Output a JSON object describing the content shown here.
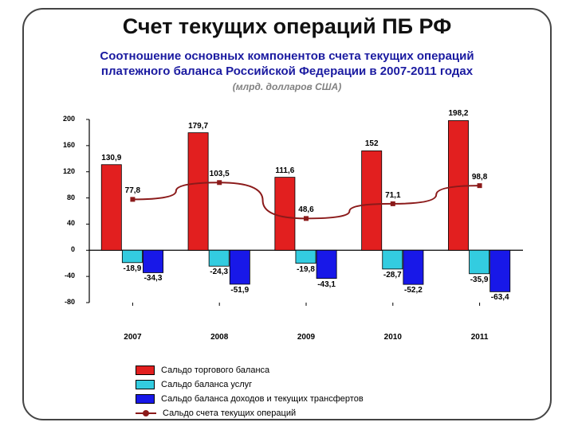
{
  "page_title": "Счет текущих операций ПБ РФ",
  "chart": {
    "type": "bar+line",
    "title_line1": "Соотношение основных компонентов счета текущих операций",
    "title_line2": "платежного баланса Российской Федерации в 2007-2011 годах",
    "subtitle": "(млрд. долларов США)",
    "title_color": "#1a1aa0",
    "subtitle_color": "#808080",
    "title_fontsize": 15,
    "subtitle_fontsize": 12,
    "background_color": "#ffffff",
    "axis_color": "#000000",
    "ylim": [
      -80,
      200
    ],
    "ytick_step": 40,
    "yticks": [
      -80,
      -40,
      0,
      40,
      80,
      120,
      160,
      200
    ],
    "categories": [
      "2007",
      "2008",
      "2009",
      "2010",
      "2011"
    ],
    "series": [
      {
        "name": "Сальдо торгового баланса",
        "color": "#e21f1f",
        "border": "#000000",
        "values": [
          130.9,
          179.7,
          111.6,
          152.0,
          198.2
        ]
      },
      {
        "name": "Сальдо баланса услуг",
        "color": "#33cce0",
        "border": "#000000",
        "values": [
          -18.9,
          -24.3,
          -19.8,
          -28.7,
          -35.9
        ]
      },
      {
        "name": "Сальдо баланса доходов и текущих трансфертов",
        "color": "#1818e8",
        "border": "#000000",
        "values": [
          -34.3,
          -51.9,
          -43.1,
          -52.2,
          -63.4
        ]
      }
    ],
    "line_series": {
      "name": "Сальдо счета текущих операций",
      "color": "#8b1a1a",
      "marker_color": "#8b1a1a",
      "line_width": 2,
      "values": [
        77.8,
        103.5,
        48.6,
        71.1,
        98.8
      ]
    },
    "bar_group_width": 0.72,
    "label_fontsize": 10,
    "tick_fontsize": 9
  },
  "legend": {
    "items": [
      {
        "type": "swatch",
        "label": "Сальдо торгового баланса",
        "color": "#e21f1f"
      },
      {
        "type": "swatch",
        "label": "Сальдо баланса услуг",
        "color": "#33cce0"
      },
      {
        "type": "swatch",
        "label": "Сальдо баланса доходов и текущих трансфертов",
        "color": "#1818e8"
      },
      {
        "type": "line",
        "label": "Сальдо счета текущих операций",
        "color": "#8b1a1a"
      }
    ]
  }
}
